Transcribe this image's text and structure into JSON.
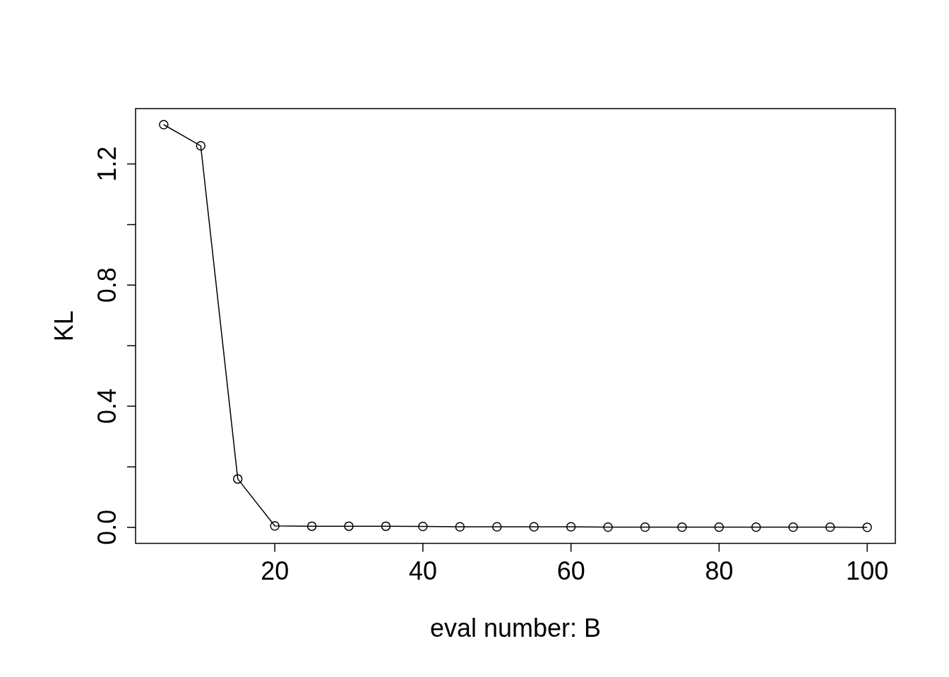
{
  "chart_data": {
    "type": "line",
    "xlabel": "eval number: B",
    "ylabel": "KL",
    "x": [
      5,
      10,
      15,
      20,
      25,
      30,
      35,
      40,
      45,
      50,
      55,
      60,
      65,
      70,
      75,
      80,
      85,
      90,
      95,
      100
    ],
    "series": [
      {
        "color": "#000000",
        "values": [
          1.33,
          1.26,
          0.16,
          0.005,
          0.004,
          0.004,
          0.004,
          0.003,
          0.002,
          0.002,
          0.002,
          0.002,
          0.001,
          0.001,
          0.001,
          0.001,
          0.001,
          0.001,
          0.001,
          0.0
        ]
      }
    ],
    "xlim": [
      1.2,
      103.8
    ],
    "ylim": [
      -0.053,
      1.383
    ],
    "xticks": [
      20,
      40,
      60,
      80,
      100
    ],
    "yticks": [
      {
        "value": 0,
        "label": "0.0"
      },
      {
        "value": 0.2,
        "label": null
      },
      {
        "value": 0.4,
        "label": "0.4"
      },
      {
        "value": 0.6,
        "label": null
      },
      {
        "value": 0.8,
        "label": "0.8"
      },
      {
        "value": 1.0,
        "label": null
      },
      {
        "value": 1.2,
        "label": "1.2"
      }
    ],
    "grid": false,
    "legend": false,
    "marker": "circle",
    "line_style": "solid"
  }
}
